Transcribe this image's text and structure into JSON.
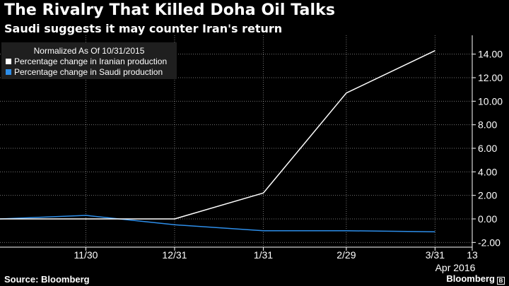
{
  "header": {
    "title": "The Rivalry That Killed Doha Oil Talks",
    "subtitle": "Saudi suggests it may counter Iran's return"
  },
  "footer": {
    "source": "Source: Bloomberg",
    "brand": "Bloomberg"
  },
  "chart_data": {
    "type": "line",
    "legend_title": "Normalized As Of 10/31/2015",
    "legend_position": "top-left",
    "x_dates": [
      "2015-10-31",
      "2015-11-30",
      "2015-12-31",
      "2016-01-31",
      "2016-02-29",
      "2016-03-31"
    ],
    "xlim": [
      "2015-10-31",
      "2016-04-13"
    ],
    "x_tick_labels": [
      "11/30",
      "12/31",
      "1/31",
      "2/29",
      "3/31",
      "13"
    ],
    "x_tick_dates": [
      "2015-11-30",
      "2015-12-31",
      "2016-01-31",
      "2016-02-29",
      "2016-03-31",
      "2016-04-13"
    ],
    "x_month_label": "Apr 2016",
    "ylim": [
      -2.4,
      15.6
    ],
    "y_ticks": [
      -2,
      0,
      2,
      4,
      6,
      8,
      10,
      12,
      14
    ],
    "y_tick_labels": [
      "-2.00",
      "0.00",
      "2.00",
      "4.00",
      "6.00",
      "8.00",
      "10.00",
      "12.00",
      "14.00"
    ],
    "grid": true,
    "series": [
      {
        "name": "Percentage change in Iranian production",
        "color": "#ffffff",
        "values": [
          0,
          0,
          0,
          2.2,
          10.7,
          14.3
        ]
      },
      {
        "name": "Percentage change in Saudi production",
        "color": "#2d8eea",
        "values": [
          0,
          0.3,
          -0.5,
          -1.0,
          -1.0,
          -1.1
        ]
      }
    ]
  }
}
